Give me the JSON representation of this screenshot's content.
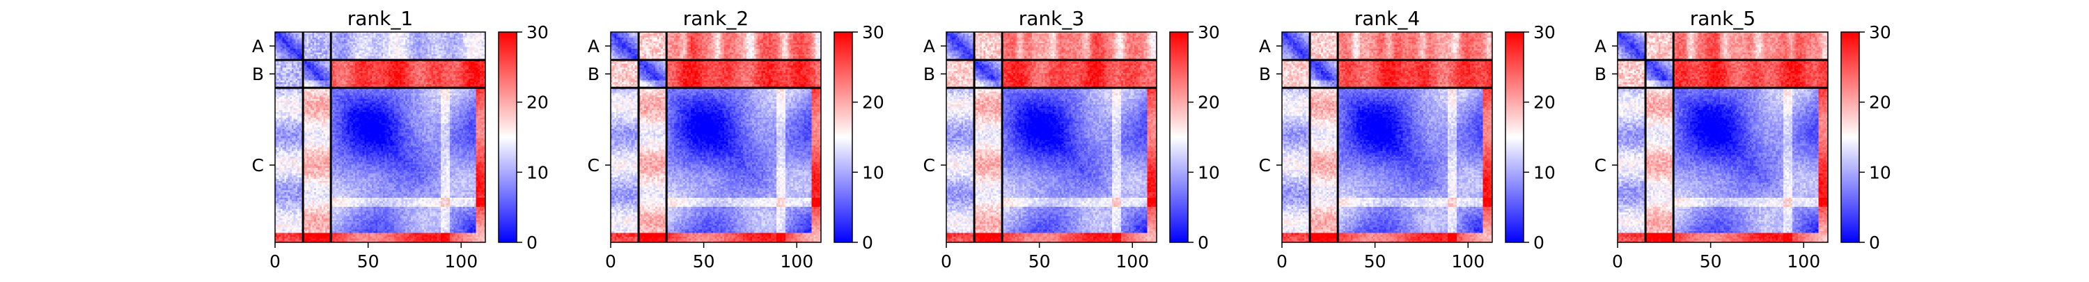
{
  "colors": {
    "low": "#0000ff",
    "mid": "#ffffff",
    "high": "#ff0000",
    "divider": "#000000"
  },
  "colorbar": {
    "vmin": 0,
    "vmax": 30,
    "ticks": [
      "0",
      "10",
      "20",
      "30"
    ]
  },
  "chains": [
    {
      "label": "A",
      "start": 0,
      "end": 15
    },
    {
      "label": "B",
      "start": 15,
      "end": 30
    },
    {
      "label": "C",
      "start": 30,
      "end": 113
    }
  ],
  "chart_data": [
    {
      "type": "heatmap",
      "title": "rank_1",
      "xticks": [
        "0",
        "50",
        "100"
      ],
      "x_range": [
        0,
        113
      ],
      "y_range": [
        113,
        0
      ],
      "chain_labels": [
        "A",
        "B",
        "C"
      ]
    },
    {
      "type": "heatmap",
      "title": "rank_2",
      "xticks": [
        "0",
        "50",
        "100"
      ],
      "x_range": [
        0,
        113
      ],
      "y_range": [
        113,
        0
      ],
      "chain_labels": [
        "A",
        "B",
        "C"
      ]
    },
    {
      "type": "heatmap",
      "title": "rank_3",
      "xticks": [
        "0",
        "50",
        "100"
      ],
      "x_range": [
        0,
        113
      ],
      "y_range": [
        113,
        0
      ],
      "chain_labels": [
        "A",
        "B",
        "C"
      ]
    },
    {
      "type": "heatmap",
      "title": "rank_4",
      "xticks": [
        "0",
        "50",
        "100"
      ],
      "x_range": [
        0,
        113
      ],
      "y_range": [
        113,
        0
      ],
      "chain_labels": [
        "A",
        "B",
        "C"
      ]
    },
    {
      "type": "heatmap",
      "title": "rank_5",
      "xticks": [
        "0",
        "50",
        "100"
      ],
      "x_range": [
        0,
        113
      ],
      "y_range": [
        113,
        0
      ],
      "chain_labels": [
        "A",
        "B",
        "C"
      ]
    }
  ]
}
